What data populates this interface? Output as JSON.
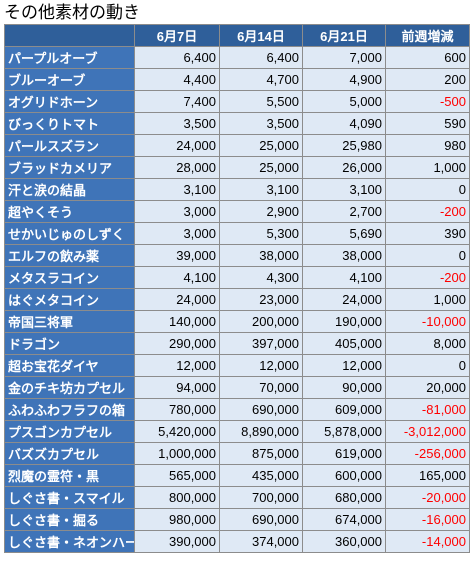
{
  "title": "その他素材の動き",
  "columns": [
    "",
    "6月7日",
    "6月14日",
    "6月21日",
    "前週増減"
  ],
  "rows": [
    {
      "name": "パープルオーブ",
      "w1": "6,400",
      "w2": "6,400",
      "w3": "7,000",
      "diff": "600",
      "neg": false
    },
    {
      "name": "ブルーオーブ",
      "w1": "4,400",
      "w2": "4,700",
      "w3": "4,900",
      "diff": "200",
      "neg": false
    },
    {
      "name": "オグリドホーン",
      "w1": "7,400",
      "w2": "5,500",
      "w3": "5,000",
      "diff": "-500",
      "neg": true
    },
    {
      "name": "びっくりトマト",
      "w1": "3,500",
      "w2": "3,500",
      "w3": "4,090",
      "diff": "590",
      "neg": false
    },
    {
      "name": "パールスズラン",
      "w1": "24,000",
      "w2": "25,000",
      "w3": "25,980",
      "diff": "980",
      "neg": false
    },
    {
      "name": "ブラッドカメリア",
      "w1": "28,000",
      "w2": "25,000",
      "w3": "26,000",
      "diff": "1,000",
      "neg": false
    },
    {
      "name": "汗と涙の結晶",
      "w1": "3,100",
      "w2": "3,100",
      "w3": "3,100",
      "diff": "0",
      "neg": false
    },
    {
      "name": "超やくそう",
      "w1": "3,000",
      "w2": "2,900",
      "w3": "2,700",
      "diff": "-200",
      "neg": true
    },
    {
      "name": "せかいじゅのしずく",
      "w1": "3,000",
      "w2": "5,300",
      "w3": "5,690",
      "diff": "390",
      "neg": false
    },
    {
      "name": "エルフの飲み薬",
      "w1": "39,000",
      "w2": "38,000",
      "w3": "38,000",
      "diff": "0",
      "neg": false
    },
    {
      "name": "メタスラコイン",
      "w1": "4,100",
      "w2": "4,300",
      "w3": "4,100",
      "diff": "-200",
      "neg": true
    },
    {
      "name": "はぐメタコイン",
      "w1": "24,000",
      "w2": "23,000",
      "w3": "24,000",
      "diff": "1,000",
      "neg": false
    },
    {
      "name": "帝国三将軍",
      "w1": "140,000",
      "w2": "200,000",
      "w3": "190,000",
      "diff": "-10,000",
      "neg": true
    },
    {
      "name": "ドラゴン",
      "w1": "290,000",
      "w2": "397,000",
      "w3": "405,000",
      "diff": "8,000",
      "neg": false
    },
    {
      "name": "超お宝花ダイヤ",
      "w1": "12,000",
      "w2": "12,000",
      "w3": "12,000",
      "diff": "0",
      "neg": false
    },
    {
      "name": "金のチキ坊カプセル",
      "w1": "94,000",
      "w2": "70,000",
      "w3": "90,000",
      "diff": "20,000",
      "neg": false
    },
    {
      "name": "ふわふわフラフの箱",
      "w1": "780,000",
      "w2": "690,000",
      "w3": "609,000",
      "diff": "-81,000",
      "neg": true
    },
    {
      "name": "プスゴンカプセル",
      "w1": "5,420,000",
      "w2": "8,890,000",
      "w3": "5,878,000",
      "diff": "-3,012,000",
      "neg": true
    },
    {
      "name": "バズズカプセル",
      "w1": "1,000,000",
      "w2": "875,000",
      "w3": "619,000",
      "diff": "-256,000",
      "neg": true
    },
    {
      "name": "烈魔の霊符・黒",
      "w1": "565,000",
      "w2": "435,000",
      "w3": "600,000",
      "diff": "165,000",
      "neg": false
    },
    {
      "name": "しぐさ書・スマイル",
      "w1": "800,000",
      "w2": "700,000",
      "w3": "680,000",
      "diff": "-20,000",
      "neg": true
    },
    {
      "name": "しぐさ書・掘る",
      "w1": "980,000",
      "w2": "690,000",
      "w3": "674,000",
      "diff": "-16,000",
      "neg": true
    },
    {
      "name": "しぐさ書・ネオンハート",
      "w1": "390,000",
      "w2": "374,000",
      "w3": "360,000",
      "diff": "-14,000",
      "neg": true
    }
  ],
  "colors": {
    "header_bg": "#2f5f9a",
    "name_bg": "#3f74b8",
    "cell_bg": "#dfe9f5",
    "negative": "#ff0000"
  }
}
